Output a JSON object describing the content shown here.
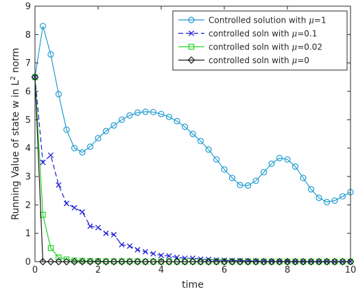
{
  "chart_data": {
    "type": "line",
    "xlabel": "time",
    "ylabel": "Running Value of state w in L² norm",
    "xlim": [
      0,
      10
    ],
    "ylim": [
      0,
      9
    ],
    "xticks": [
      0,
      2,
      4,
      6,
      8,
      10
    ],
    "yticks": [
      0,
      1,
      2,
      3,
      4,
      5,
      6,
      7,
      8,
      9
    ],
    "grid": false,
    "legend_position": "top-right",
    "series": [
      {
        "name": "Controlled solution with μ=1",
        "color": "#1f9bd1",
        "line_style": "solid",
        "marker": "circle",
        "x": [
          0,
          0.25,
          0.5,
          0.75,
          1.0,
          1.25,
          1.5,
          1.75,
          2.0,
          2.25,
          2.5,
          2.75,
          3.0,
          3.25,
          3.5,
          3.75,
          4.0,
          4.25,
          4.5,
          4.75,
          5.0,
          5.25,
          5.5,
          5.75,
          6.0,
          6.25,
          6.5,
          6.75,
          7.0,
          7.25,
          7.5,
          7.75,
          8.0,
          8.25,
          8.5,
          8.75,
          9.0,
          9.25,
          9.5,
          9.75,
          10.0
        ],
        "y": [
          6.5,
          8.3,
          7.3,
          5.9,
          4.65,
          4.0,
          3.85,
          4.05,
          4.35,
          4.6,
          4.8,
          5.0,
          5.15,
          5.25,
          5.28,
          5.27,
          5.2,
          5.1,
          4.95,
          4.75,
          4.5,
          4.25,
          3.95,
          3.6,
          3.25,
          2.95,
          2.7,
          2.68,
          2.85,
          3.15,
          3.45,
          3.65,
          3.6,
          3.35,
          2.95,
          2.55,
          2.25,
          2.1,
          2.15,
          2.3,
          2.45
        ]
      },
      {
        "name": "controlled soln with μ=0.1",
        "color": "#1c1cd6",
        "line_style": "dashed",
        "marker": "x",
        "x": [
          0,
          0.25,
          0.5,
          0.75,
          1.0,
          1.25,
          1.5,
          1.75,
          2.0,
          2.25,
          2.5,
          2.75,
          3.0,
          3.25,
          3.5,
          3.75,
          4.0,
          4.25,
          4.5,
          4.75,
          5.0,
          5.25,
          5.5,
          5.75,
          6.0,
          6.25,
          6.5,
          6.75,
          7.0,
          7.25,
          7.5,
          7.75,
          8.0,
          8.25,
          8.5,
          8.75,
          9.0,
          9.25,
          9.5,
          9.75,
          10.0
        ],
        "y": [
          6.5,
          3.5,
          3.75,
          2.7,
          2.05,
          1.9,
          1.75,
          1.25,
          1.2,
          1.0,
          0.95,
          0.6,
          0.55,
          0.42,
          0.35,
          0.28,
          0.22,
          0.2,
          0.15,
          0.12,
          0.12,
          0.09,
          0.08,
          0.06,
          0.05,
          0.04,
          0.04,
          0.03,
          0.03,
          0.02,
          0.02,
          0.02,
          0.01,
          0.01,
          0.01,
          0.01,
          0.01,
          0.01,
          0.0,
          0.0,
          0.0
        ]
      },
      {
        "name": "controlled soln with μ=0.02",
        "color": "#1fd21f",
        "line_style": "solid",
        "marker": "square",
        "x": [
          0,
          0.25,
          0.5,
          0.75,
          1.0,
          1.25,
          1.5,
          1.75,
          2.0,
          2.25,
          2.5,
          2.75,
          3.0,
          3.25,
          3.5,
          3.75,
          4.0,
          4.25,
          4.5,
          4.75,
          5.0,
          5.25,
          5.5,
          5.75,
          6.0,
          6.25,
          6.5,
          6.75,
          7.0,
          7.25,
          7.5,
          7.75,
          8.0,
          8.25,
          8.5,
          8.75,
          9.0,
          9.25,
          9.5,
          9.75,
          10.0
        ],
        "y": [
          6.5,
          1.65,
          0.48,
          0.15,
          0.08,
          0.04,
          0.03,
          0.02,
          0.02,
          0.01,
          0.01,
          0.01,
          0.01,
          0.01,
          0.0,
          0.0,
          0.0,
          0.0,
          0.0,
          0.0,
          0.0,
          0.0,
          0.0,
          0.0,
          0.0,
          0.0,
          0.0,
          0.0,
          0.0,
          0.0,
          0.0,
          0.0,
          0.0,
          0.0,
          0.0,
          0.0,
          0.0,
          0.0,
          0.0,
          0.0,
          0.0
        ]
      },
      {
        "name": "controlled soln with μ=0",
        "color": "#1a1a1a",
        "line_style": "solid",
        "marker": "diamond",
        "x": [
          0,
          0.25,
          0.5,
          0.75,
          1.0,
          1.25,
          1.5,
          1.75,
          2.0,
          2.25,
          2.5,
          2.75,
          3.0,
          3.25,
          3.5,
          3.75,
          4.0,
          4.25,
          4.5,
          4.75,
          5.0,
          5.25,
          5.5,
          5.75,
          6.0,
          6.25,
          6.5,
          6.75,
          7.0,
          7.25,
          7.5,
          7.75,
          8.0,
          8.25,
          8.5,
          8.75,
          9.0,
          9.25,
          9.5,
          9.75,
          10.0
        ],
        "y": [
          6.5,
          0.0,
          0.0,
          0.0,
          0.0,
          0.0,
          0.0,
          0.0,
          0.0,
          0.0,
          0.0,
          0.0,
          0.0,
          0.0,
          0.0,
          0.0,
          0.0,
          0.0,
          0.0,
          0.0,
          0.0,
          0.0,
          0.0,
          0.0,
          0.0,
          0.0,
          0.0,
          0.0,
          0.0,
          0.0,
          0.0,
          0.0,
          0.0,
          0.0,
          0.0,
          0.0,
          0.0,
          0.0,
          0.0,
          0.0,
          0.0
        ]
      }
    ]
  }
}
